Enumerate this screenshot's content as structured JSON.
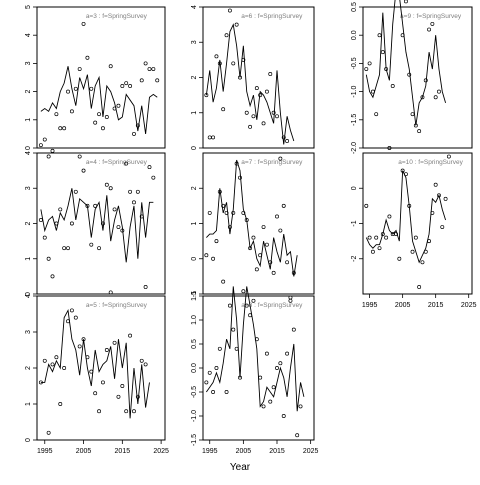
{
  "chart_data": {
    "type": "line",
    "xlabel": "Year",
    "x_ticks": [
      "1995",
      "2005",
      "2015",
      "2025"
    ],
    "xlim": [
      1993,
      2026
    ],
    "grid": false,
    "series_style": "observed points (open circles) with fitted line",
    "panels": [
      {
        "label": "a=3 : f=SpringSurvey",
        "ylim": [
          0,
          5
        ],
        "y_ticks": [
          0,
          1,
          2,
          3,
          4,
          5
        ],
        "x": [
          1994,
          1995,
          1996,
          1997,
          1998,
          1999,
          2000,
          2001,
          2002,
          2003,
          2004,
          2005,
          2006,
          2007,
          2008,
          2009,
          2010,
          2011,
          2012,
          2013,
          2014,
          2015,
          2016,
          2017,
          2018,
          2019,
          2020,
          2021,
          2022,
          2023,
          2024,
          2025
        ],
        "points": [
          0.1,
          0.3,
          -0.3,
          -0.1,
          1.2,
          0.7,
          0.7,
          2.0,
          1.3,
          2.1,
          2.8,
          4.4,
          3.2,
          2.1,
          0.9,
          1.2,
          0.7,
          1.1,
          2.9,
          1.4,
          1.5,
          2.2,
          2.3,
          2.2,
          0.5,
          0.8,
          2.4,
          3.0,
          2.8,
          2.8,
          2.4,
          null
        ],
        "fitted": [
          1.3,
          1.4,
          1.3,
          1.6,
          1.4,
          2.0,
          2.3,
          2.9,
          2.1,
          1.5,
          2.5,
          2.1,
          2.6,
          1.4,
          2.2,
          2.5,
          1.1,
          2.2,
          2.0,
          1.6,
          1.0,
          1.1,
          1.9,
          1.7,
          1.5,
          0.6,
          1.5,
          0.5,
          1.8,
          1.9,
          1.8,
          null
        ]
      },
      {
        "label": "a=4 : f=SpringSurvey",
        "ylim": [
          0,
          4
        ],
        "y_ticks": [
          0,
          1,
          2,
          3,
          4
        ],
        "x": [
          1994,
          1995,
          1996,
          1997,
          1998,
          1999,
          2000,
          2001,
          2002,
          2003,
          2004,
          2005,
          2006,
          2007,
          2008,
          2009,
          2010,
          2011,
          2012,
          2013,
          2014,
          2015,
          2016,
          2017,
          2018,
          2019,
          2020,
          2021,
          2022,
          2023,
          2024,
          2025
        ],
        "points": [
          2.1,
          1.6,
          1.0,
          0.5,
          2.0,
          2.4,
          1.3,
          1.3,
          2.0,
          2.9,
          3.9,
          3.5,
          2.5,
          1.4,
          2.5,
          1.3,
          2.0,
          3.1,
          3.0,
          2.4,
          1.9,
          1.8,
          3.7,
          2.9,
          2.6,
          2.9,
          2.2,
          0.2,
          3.6,
          3.3,
          null,
          null
        ],
        "fitted": [
          2.4,
          1.8,
          2.1,
          2.2,
          1.8,
          2.3,
          2.1,
          2.5,
          3.0,
          2.1,
          2.7,
          2.6,
          2.5,
          1.6,
          2.4,
          2.6,
          1.8,
          2.8,
          1.5,
          2.1,
          2.5,
          1.9,
          0.9,
          1.9,
          2.5,
          1.0,
          2.6,
          1.6,
          2.6,
          2.6,
          null,
          null
        ]
      },
      {
        "label": "a=5 : f=SpringSurvey",
        "ylim": [
          0,
          4
        ],
        "y_ticks": [
          0,
          1,
          2,
          3,
          4
        ],
        "x": [
          1994,
          1995,
          1996,
          1997,
          1998,
          1999,
          2000,
          2001,
          2002,
          2003,
          2004,
          2005,
          2006,
          2007,
          2008,
          2009,
          2010,
          2011,
          2012,
          2013,
          2014,
          2015,
          2016,
          2017,
          2018,
          2019,
          2020,
          2021,
          2022,
          2023,
          2024,
          2025
        ],
        "points": [
          1.6,
          2.2,
          0.2,
          2.1,
          2.3,
          1.0,
          2.0,
          3.3,
          3.6,
          3.4,
          2.6,
          2.8,
          2.3,
          1.9,
          1.3,
          0.8,
          1.6,
          2.5,
          4.1,
          2.7,
          1.2,
          1.5,
          0.8,
          2.9,
          0.8,
          1.2,
          2.2,
          2.1,
          null,
          null,
          null,
          null
        ],
        "fitted": [
          1.6,
          1.6,
          2.1,
          1.9,
          2.2,
          2.0,
          3.4,
          3.6,
          2.8,
          2.5,
          1.8,
          2.8,
          2.0,
          1.5,
          2.5,
          1.9,
          2.1,
          2.2,
          2.6,
          1.7,
          2.8,
          2.0,
          2.7,
          0.6,
          2.0,
          1.0,
          2.1,
          0.9,
          1.6,
          null,
          null,
          null
        ]
      },
      {
        "label": "a=6 : f=SpringSurvey",
        "ylim": [
          0,
          4
        ],
        "y_ticks": [
          0,
          1,
          2,
          3,
          4
        ],
        "x": [
          1994,
          1995,
          1996,
          1997,
          1998,
          1999,
          2000,
          2001,
          2002,
          2003,
          2004,
          2005,
          2006,
          2007,
          2008,
          2009,
          2010,
          2011,
          2012,
          2013,
          2014,
          2015,
          2016,
          2017,
          2018,
          2019,
          2020,
          2021,
          2022,
          2023,
          2024,
          2025
        ],
        "points": [
          1.5,
          0.3,
          0.3,
          2.6,
          2.4,
          1.1,
          3.2,
          3.9,
          2.4,
          3.5,
          2.0,
          2.5,
          1.0,
          0.6,
          0.9,
          1.7,
          1.5,
          0.7,
          1.6,
          2.1,
          1.0,
          0.9,
          -0.3,
          0.3,
          0.2,
          null,
          null,
          null,
          null,
          null,
          null,
          null
        ],
        "fitted": [
          1.5,
          2.2,
          1.3,
          1.7,
          2.5,
          1.6,
          2.4,
          3.3,
          3.5,
          2.9,
          2.0,
          2.9,
          1.6,
          1.2,
          1.5,
          0.8,
          1.6,
          1.5,
          1.3,
          1.0,
          0.7,
          2.2,
          1.0,
          0.1,
          0.9,
          0.5,
          0.2,
          null,
          null,
          null,
          null,
          null
        ]
      },
      {
        "label": "a=7 : f=SpringSurvey",
        "ylim": [
          -1,
          3
        ],
        "y_ticks": [
          -1,
          0,
          1,
          2
        ],
        "x": [
          1994,
          1995,
          1996,
          1997,
          1998,
          1999,
          2000,
          2001,
          2002,
          2003,
          2004,
          2005,
          2006,
          2007,
          2008,
          2009,
          2010,
          2011,
          2012,
          2013,
          2014,
          2015,
          2016,
          2017,
          2018,
          2019,
          2020,
          2021,
          2022,
          2023,
          2024,
          2025
        ],
        "points": [
          0.1,
          1.3,
          0.0,
          0.5,
          1.9,
          1.5,
          1.3,
          0.9,
          1.3,
          2.7,
          2.3,
          1.3,
          1.1,
          0.3,
          0.6,
          -0.3,
          0.1,
          0.9,
          0.4,
          -0.1,
          -0.4,
          1.2,
          0.8,
          1.5,
          -0.1,
          -1.1,
          -0.4,
          null,
          null,
          null,
          null,
          null
        ],
        "fitted": [
          0.6,
          0.7,
          0.7,
          0.8,
          2.0,
          1.3,
          1.6,
          0.7,
          1.4,
          2.8,
          2.5,
          1.4,
          1.1,
          0.3,
          0.5,
          0.0,
          -0.2,
          0.5,
          0.1,
          -0.3,
          0.6,
          0.2,
          -0.1,
          0.7,
          0.1,
          0.2,
          -0.5,
          0.1,
          null,
          null,
          null,
          null
        ]
      },
      {
        "label": "a=8 : f=SpringSurvey",
        "ylim": [
          -1.5,
          1.5
        ],
        "y_ticks": [
          -1.5,
          -1.0,
          -0.5,
          0.0,
          0.5,
          1.0,
          1.5
        ],
        "x": [
          1994,
          1995,
          1996,
          1997,
          1998,
          1999,
          2000,
          2001,
          2002,
          2003,
          2004,
          2005,
          2006,
          2007,
          2008,
          2009,
          2010,
          2011,
          2012,
          2013,
          2014,
          2015,
          2016,
          2017,
          2018,
          2019,
          2020,
          2021,
          2022,
          2023,
          2024,
          2025
        ],
        "points": [
          -0.3,
          -0.1,
          -0.5,
          0.0,
          0.4,
          1.8,
          -0.5,
          1.3,
          0.8,
          0.4,
          -0.2,
          1.6,
          1.3,
          1.1,
          1.4,
          0.6,
          -0.2,
          -0.8,
          0.3,
          -0.7,
          -0.4,
          0.0,
          0.1,
          -1.0,
          0.3,
          1.4,
          0.8,
          -1.4,
          -0.8,
          null,
          null,
          null
        ],
        "fitted": [
          -0.5,
          -0.4,
          -0.3,
          -0.1,
          -0.3,
          0.1,
          0.6,
          0.4,
          1.7,
          1.0,
          -0.2,
          0.9,
          1.7,
          1.3,
          0.9,
          0.4,
          -0.8,
          -0.7,
          -0.4,
          -0.5,
          -0.6,
          -0.3,
          0.0,
          -0.2,
          -0.6,
          0.0,
          0.5,
          -0.9,
          -0.3,
          -0.6,
          null,
          null
        ]
      },
      {
        "label": "a=9 : f=SpringSurvey",
        "ylim": [
          -2,
          0.5
        ],
        "y_ticks": [
          -2.0,
          -1.5,
          -1.0,
          -0.5,
          0.0,
          0.5
        ],
        "x": [
          1994,
          1995,
          1996,
          1997,
          1998,
          1999,
          2000,
          2001,
          2002,
          2003,
          2004,
          2005,
          2006,
          2007,
          2008,
          2009,
          2010,
          2011,
          2012,
          2013,
          2014,
          2015,
          2016,
          2017,
          2018,
          2019,
          2020,
          2021,
          2022,
          2023,
          2024,
          2025
        ],
        "points": [
          -0.6,
          -0.5,
          -1.0,
          -1.4,
          0.0,
          -0.3,
          -0.6,
          -2.0,
          -0.9,
          0.8,
          0.7,
          0.0,
          0.6,
          -0.7,
          -1.4,
          -1.6,
          -1.7,
          -1.1,
          -0.8,
          0.1,
          0.2,
          -1.1,
          -1.0,
          null,
          null,
          null,
          null,
          null,
          null,
          null,
          null,
          null
        ],
        "fitted": [
          -0.7,
          -1.0,
          -1.1,
          -0.9,
          -0.7,
          0.4,
          -0.6,
          -0.8,
          0.2,
          0.8,
          0.7,
          0.2,
          -0.3,
          -0.6,
          -1.1,
          -1.6,
          -1.2,
          -1.1,
          -0.9,
          -0.3,
          -0.6,
          0.0,
          -0.6,
          -1.0,
          -1.2,
          null,
          null,
          null,
          null,
          null,
          null,
          null
        ]
      },
      {
        "label": "a=10 : f=SpringSurvey",
        "ylim": [
          -3,
          1
        ],
        "y_ticks": [
          -2,
          -1,
          0
        ],
        "x": [
          1994,
          1995,
          1996,
          1997,
          1998,
          1999,
          2000,
          2001,
          2002,
          2003,
          2004,
          2005,
          2006,
          2007,
          2008,
          2009,
          2010,
          2011,
          2012,
          2013,
          2014,
          2015,
          2016,
          2017,
          2018,
          2019,
          2020,
          2021,
          2022,
          2023,
          2024,
          2025
        ],
        "points": [
          -0.5,
          -1.4,
          -1.8,
          -1.4,
          -1.7,
          -1.3,
          -1.4,
          -0.8,
          -1.3,
          -1.3,
          -2.0,
          0.5,
          0.4,
          -0.5,
          -1.8,
          -1.4,
          -2.8,
          -2.1,
          -1.8,
          -1.5,
          -0.7,
          0.1,
          -0.2,
          -1.1,
          -0.3,
          0.9,
          null,
          null,
          null,
          null,
          null,
          null
        ],
        "fitted": [
          -1.4,
          -1.6,
          -1.7,
          -1.6,
          -1.6,
          -1.3,
          -0.9,
          -1.2,
          -1.3,
          -1.2,
          -1.5,
          0.5,
          0.3,
          -0.5,
          -1.5,
          -1.8,
          -2.1,
          -1.9,
          -1.7,
          -1.3,
          -0.3,
          -0.4,
          -0.2,
          -0.6,
          -0.9,
          null,
          null,
          null,
          null,
          null,
          null,
          null
        ]
      }
    ]
  }
}
